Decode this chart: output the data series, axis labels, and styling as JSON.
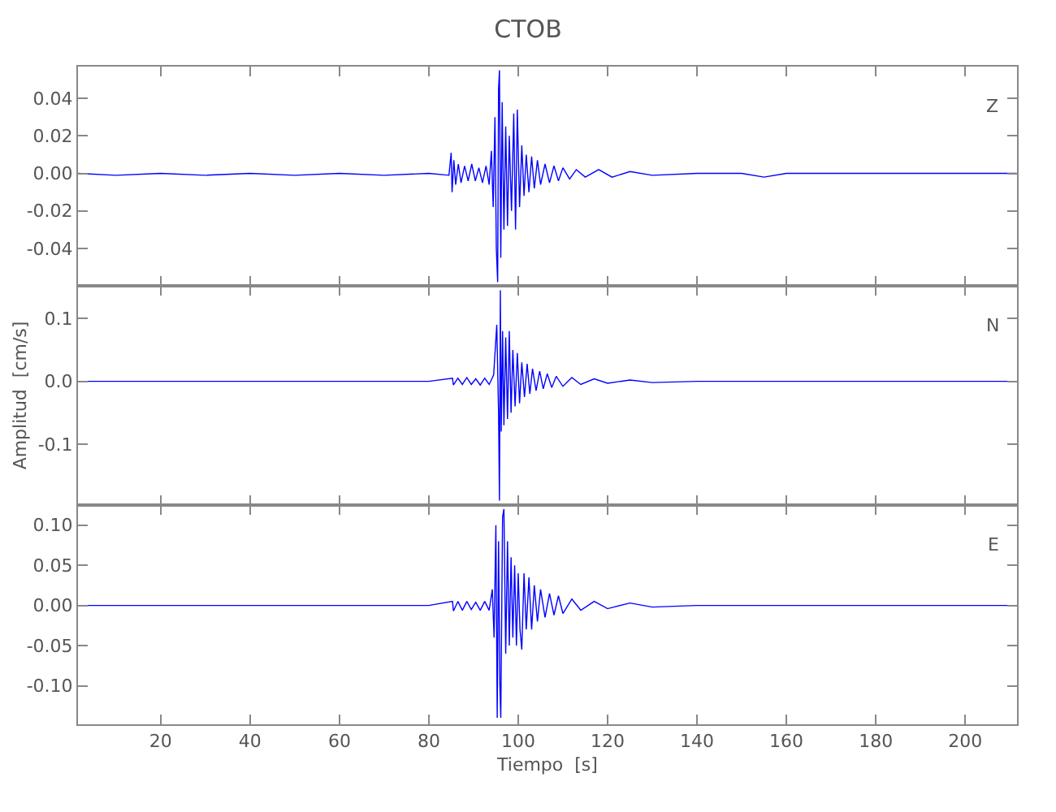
{
  "chart_data": [
    {
      "type": "line",
      "title": "CTOB",
      "annotations": [
        "Z"
      ],
      "xlim": [
        1.5,
        211.6
      ],
      "xticks": [
        20,
        40,
        60,
        80,
        100,
        120,
        140,
        160,
        180,
        200
      ],
      "ylim": [
        -0.06,
        0.057
      ],
      "yticks": [
        {
          "value": -0.04,
          "label": "-0.04"
        },
        {
          "value": -0.02,
          "label": "-0.02"
        },
        {
          "value": 0,
          "label": "0.00"
        },
        {
          "value": 0.02,
          "label": "0.02"
        },
        {
          "value": 0.04,
          "label": "0.04"
        }
      ],
      "tick_labels": "y",
      "series": [
        {
          "color": "#0000ff",
          "x": [
            1.5,
            10,
            20,
            30,
            40,
            50,
            60,
            70,
            80,
            84.5,
            85.0,
            85.2,
            85.6,
            86.0,
            86.6,
            87.2,
            88.0,
            88.8,
            89.6,
            90.4,
            91.2,
            92.0,
            92.8,
            93.5,
            94.0,
            94.4,
            94.8,
            95.1,
            95.4,
            95.6,
            95.8,
            96.1,
            96.4,
            96.8,
            97.2,
            97.6,
            98.0,
            98.5,
            99.0,
            99.4,
            99.8,
            100.3,
            100.8,
            101.3,
            101.8,
            102.4,
            103.0,
            103.6,
            104.3,
            105,
            106,
            107,
            108,
            109,
            110,
            111.5,
            113,
            115,
            118,
            121,
            125,
            130,
            140,
            150,
            155,
            160,
            170,
            180,
            190,
            200,
            211.5
          ],
          "values": [
            0,
            -0.001,
            0,
            -0.001,
            0,
            -0.001,
            0,
            -0.001,
            0,
            -0.001,
            0.011,
            -0.01,
            0.007,
            -0.006,
            0.005,
            -0.005,
            0.004,
            -0.004,
            0.005,
            -0.004,
            0.003,
            -0.005,
            0.004,
            -0.006,
            0.012,
            -0.018,
            0.03,
            -0.04,
            -0.058,
            0.045,
            0.055,
            -0.045,
            0.038,
            -0.03,
            0.025,
            -0.028,
            0.02,
            -0.02,
            0.032,
            -0.03,
            0.034,
            -0.018,
            0.015,
            -0.012,
            0.01,
            -0.01,
            0.009,
            -0.008,
            0.007,
            -0.006,
            0.005,
            -0.005,
            0.004,
            -0.004,
            0.003,
            -0.003,
            0.002,
            -0.002,
            0.002,
            -0.002,
            0.001,
            -0.001,
            0,
            0,
            -0.002,
            0,
            0,
            0,
            0,
            0,
            0
          ]
        }
      ]
    },
    {
      "type": "line",
      "ylabel": "Amplitud  [cm/s]",
      "annotations": [
        "N"
      ],
      "xlim": [
        1.5,
        211.6
      ],
      "xticks": [
        20,
        40,
        60,
        80,
        100,
        120,
        140,
        160,
        180,
        200
      ],
      "ylim": [
        -0.197,
        0.152
      ],
      "yticks": [
        {
          "value": -0.1,
          "label": "-0.1"
        },
        {
          "value": 0,
          "label": "0.0"
        },
        {
          "value": 0.1,
          "label": "0.1"
        }
      ],
      "tick_labels": "y",
      "series": [
        {
          "color": "#0000ff",
          "x": [
            1.5,
            20,
            40,
            60,
            80,
            85.3,
            85.5,
            86.5,
            87.5,
            88.5,
            89.5,
            90.5,
            91.5,
            92.5,
            93.5,
            94.5,
            95.2,
            95.6,
            95.8,
            96.0,
            96.2,
            96.5,
            96.8,
            97.2,
            97.6,
            98.0,
            98.4,
            98.8,
            99.3,
            99.8,
            100.3,
            100.8,
            101.4,
            102.0,
            102.6,
            103.2,
            104.0,
            104.8,
            105.6,
            106.5,
            107.5,
            108.5,
            110,
            112,
            114,
            117,
            120,
            125,
            130,
            140,
            150,
            160,
            170,
            180,
            190,
            200,
            211.5
          ],
          "values": [
            0,
            0,
            0,
            0,
            0,
            0.005,
            -0.006,
            0.005,
            -0.005,
            0.006,
            -0.005,
            0.004,
            -0.006,
            0.005,
            -0.005,
            0.01,
            0.09,
            -0.05,
            -0.19,
            0.145,
            -0.08,
            0.08,
            -0.07,
            0.07,
            -0.06,
            0.08,
            -0.05,
            0.05,
            -0.04,
            0.045,
            -0.035,
            0.03,
            -0.025,
            0.028,
            -0.02,
            0.02,
            -0.015,
            0.016,
            -0.012,
            0.012,
            -0.01,
            0.008,
            -0.008,
            0.006,
            -0.005,
            0.004,
            -0.003,
            0.002,
            -0.002,
            0,
            0,
            0,
            0,
            0,
            0,
            0,
            0
          ]
        }
      ]
    },
    {
      "type": "line",
      "xlabel": "Tiempo  [s]",
      "annotations": [
        "E"
      ],
      "xlim": [
        1.5,
        211.6
      ],
      "xticks": [
        20,
        40,
        60,
        80,
        100,
        120,
        140,
        160,
        180,
        200
      ],
      "ylim": [
        -0.148,
        0.125
      ],
      "yticks": [
        {
          "value": -0.1,
          "label": "-0.10"
        },
        {
          "value": -0.05,
          "label": "-0.05"
        },
        {
          "value": 0,
          "label": "0.00"
        },
        {
          "value": 0.05,
          "label": "0.05"
        },
        {
          "value": 0.1,
          "label": "0.10"
        }
      ],
      "series": [
        {
          "color": "#0000ff",
          "x": [
            1.5,
            20,
            40,
            60,
            80,
            85.3,
            85.5,
            86.5,
            87.5,
            88.5,
            89.5,
            90.5,
            91.5,
            92.5,
            93.5,
            94.2,
            94.6,
            95.0,
            95.3,
            95.6,
            95.9,
            96.1,
            96.5,
            96.8,
            97.2,
            97.6,
            98.0,
            98.4,
            98.8,
            99.2,
            99.6,
            100.0,
            100.4,
            100.8,
            101.3,
            101.8,
            102.4,
            103.0,
            103.6,
            104.3,
            105,
            106,
            107,
            108,
            109,
            110,
            112,
            114,
            117,
            120,
            125,
            130,
            140,
            150,
            160,
            170,
            180,
            190,
            200,
            211.5
          ],
          "values": [
            0,
            0,
            0,
            0,
            0,
            0.005,
            -0.007,
            0.005,
            -0.006,
            0.005,
            -0.005,
            0.004,
            -0.006,
            0.005,
            -0.006,
            0.02,
            -0.04,
            0.1,
            -0.14,
            0.08,
            -0.1,
            -0.14,
            0.11,
            0.12,
            -0.06,
            0.08,
            -0.05,
            0.06,
            -0.04,
            0.05,
            -0.05,
            0.04,
            -0.03,
            -0.055,
            0.04,
            -0.03,
            0.035,
            -0.03,
            0.025,
            -0.02,
            0.02,
            -0.015,
            0.015,
            -0.012,
            0.012,
            -0.01,
            0.008,
            -0.006,
            0.005,
            -0.004,
            0.003,
            -0.002,
            0,
            0,
            0,
            0,
            0,
            0,
            0,
            0
          ]
        }
      ]
    }
  ]
}
